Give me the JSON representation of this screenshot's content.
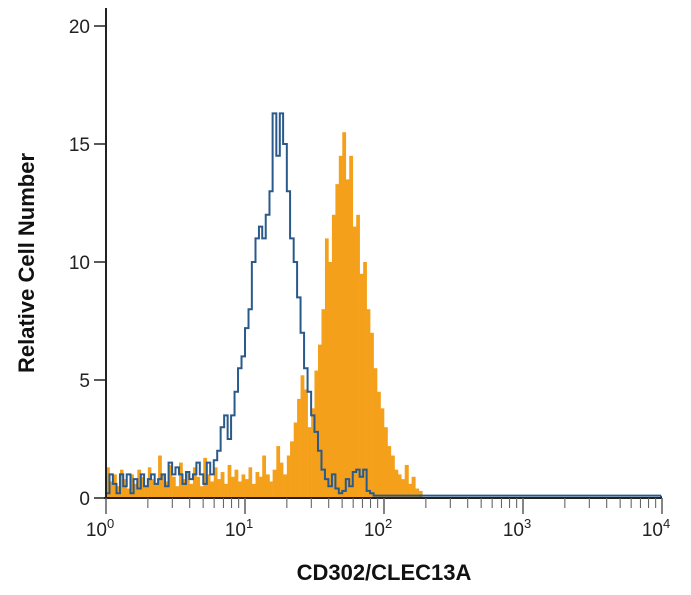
{
  "chart_data": {
    "type": "histogram",
    "xlabel": "CD302/CLEC13A",
    "ylabel": "Relative Cell Number",
    "xscale": "log",
    "xlim": [
      1,
      10000
    ],
    "ylim": [
      0,
      20
    ],
    "yticks": [
      "0",
      "5",
      "10",
      "15",
      "20"
    ],
    "xticks": [
      {
        "base": "10",
        "exp": "0"
      },
      {
        "base": "10",
        "exp": "1"
      },
      {
        "base": "10",
        "exp": "2"
      },
      {
        "base": "10",
        "exp": "3"
      },
      {
        "base": "10",
        "exp": "4"
      }
    ],
    "grid": false,
    "series": [
      {
        "style": "filled",
        "color": "#f5a01a",
        "x": [
          1.0,
          1.06,
          1.12,
          1.19,
          1.26,
          1.33,
          1.41,
          1.5,
          1.58,
          1.68,
          1.78,
          1.88,
          2.0,
          2.11,
          2.24,
          2.37,
          2.51,
          2.66,
          2.82,
          2.99,
          3.16,
          3.35,
          3.55,
          3.76,
          3.98,
          4.22,
          4.47,
          4.73,
          5.01,
          5.31,
          5.62,
          5.96,
          6.31,
          6.68,
          7.08,
          7.5,
          7.94,
          8.41,
          8.91,
          9.44,
          10.0,
          10.6,
          11.2,
          11.9,
          12.6,
          13.3,
          14.1,
          15.0,
          15.8,
          16.8,
          17.8,
          18.8,
          20.0,
          21.1,
          22.4,
          23.7,
          25.1,
          26.6,
          28.2,
          29.9,
          31.6,
          33.5,
          35.5,
          37.6,
          39.8,
          42.2,
          44.7,
          47.3,
          50.1,
          53.1,
          56.2,
          59.6,
          63.1,
          66.8,
          70.8,
          75.0,
          79.4,
          84.1,
          89.1,
          94.4,
          100.0,
          106,
          112,
          119,
          126,
          133,
          141,
          150,
          158,
          168,
          178
        ],
        "y": [
          1.3,
          0.7,
          1.0,
          0.5,
          1.2,
          0.8,
          0.4,
          1.0,
          0.6,
          1.2,
          0.9,
          0.5,
          1.3,
          0.8,
          0.6,
          1.8,
          1.0,
          0.7,
          1.4,
          0.9,
          0.5,
          1.5,
          0.8,
          1.1,
          0.6,
          1.3,
          0.9,
          0.5,
          1.7,
          1.0,
          0.7,
          1.3,
          0.8,
          1.1,
          0.6,
          1.4,
          0.9,
          1.2,
          0.7,
          1.0,
          0.8,
          1.3,
          0.6,
          1.1,
          0.9,
          1.8,
          1.0,
          0.7,
          1.2,
          2.2,
          1.5,
          1.0,
          1.8,
          2.4,
          3.2,
          4.2,
          5.2,
          4.6,
          3.0,
          3.8,
          5.4,
          6.5,
          8.0,
          11.0,
          10.0,
          12.0,
          13.3,
          14.5,
          15.5,
          13.5,
          14.5,
          11.5,
          12.0,
          9.5,
          10.0,
          8.0,
          7.0,
          5.5,
          4.5,
          3.8,
          3.0,
          2.2,
          1.8,
          1.2,
          1.0,
          0.8,
          1.4,
          0.6,
          0.9,
          0.4,
          0.3
        ]
      },
      {
        "style": "outline",
        "color": "#2a5a8c",
        "x": [
          1.0,
          1.06,
          1.12,
          1.19,
          1.26,
          1.33,
          1.41,
          1.5,
          1.58,
          1.68,
          1.78,
          1.88,
          2.0,
          2.11,
          2.24,
          2.37,
          2.51,
          2.66,
          2.82,
          2.99,
          3.16,
          3.35,
          3.55,
          3.76,
          3.98,
          4.22,
          4.47,
          4.73,
          5.01,
          5.31,
          5.62,
          5.96,
          6.31,
          6.68,
          7.08,
          7.5,
          7.94,
          8.41,
          8.91,
          9.44,
          10.0,
          10.6,
          11.2,
          11.9,
          12.6,
          13.3,
          14.1,
          15.0,
          15.8,
          16.8,
          17.8,
          18.8,
          20.0,
          21.1,
          22.4,
          23.7,
          25.1,
          26.6,
          28.2,
          29.9,
          31.6,
          33.5,
          35.5,
          37.6,
          39.8,
          42.2,
          44.7,
          47.3,
          50.1,
          53.1,
          56.2,
          59.6,
          63.1,
          66.8,
          70.8,
          75.0,
          79.4,
          84.1,
          89.1,
          94.4,
          100.0,
          106,
          112,
          119,
          126,
          133,
          141,
          150,
          158,
          168,
          178
        ],
        "y": [
          0.2,
          1.0,
          0.6,
          0.2,
          1.0,
          0.5,
          1.0,
          0.2,
          0.8,
          0.4,
          1.0,
          0.5,
          0.8,
          1.0,
          0.6,
          0.8,
          1.0,
          0.5,
          1.5,
          1.0,
          1.3,
          1.0,
          0.6,
          1.1,
          0.8,
          1.0,
          1.5,
          1.0,
          0.6,
          1.5,
          1.0,
          1.6,
          2.0,
          3.0,
          3.5,
          2.5,
          3.5,
          4.5,
          5.5,
          6.0,
          7.2,
          8.0,
          10.0,
          11.0,
          11.5,
          11.0,
          12.0,
          13.0,
          16.3,
          14.5,
          16.3,
          15.0,
          13.0,
          11.0,
          10.0,
          8.5,
          7.0,
          5.5,
          4.5,
          3.5,
          2.8,
          2.0,
          1.2,
          0.8,
          0.5,
          1.0,
          0.4,
          0.2,
          0.3,
          0.8,
          0.5,
          1.1,
          1.2,
          0.9,
          1.2,
          0.3,
          0.2,
          0.1,
          0.1,
          0.1,
          0.1,
          0.1,
          0.1,
          0.1,
          0.1,
          0.1,
          0.1,
          0.1,
          0.1,
          0.1,
          0.1
        ]
      },
      {
        "style": "outline-baseline",
        "color": "#2a5a8c",
        "x": [
          178,
          10000
        ],
        "y": [
          0.1,
          0.1
        ]
      }
    ]
  }
}
